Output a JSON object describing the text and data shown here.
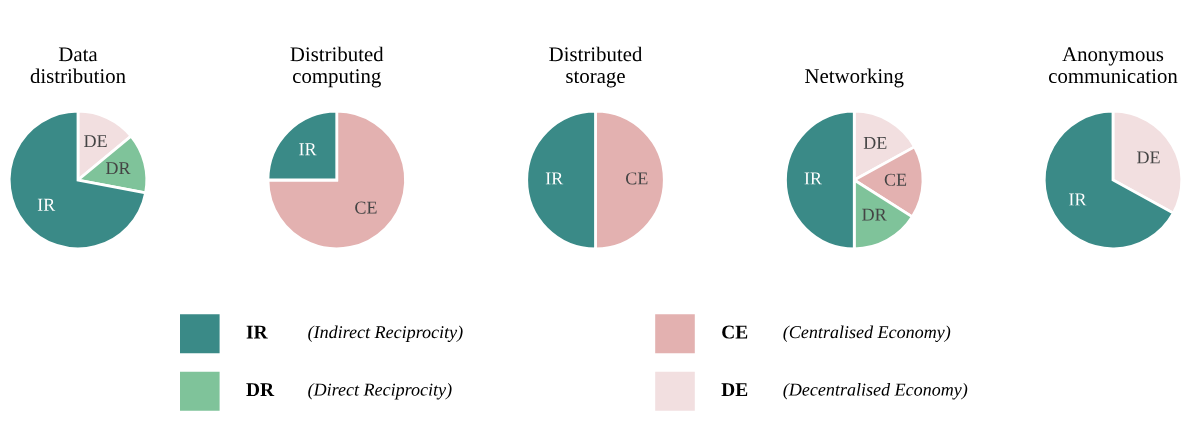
{
  "chart_data": [
    {
      "type": "pie",
      "title": "Data\ndistribution",
      "categories": [
        "DE",
        "DR",
        "IR"
      ],
      "values": [
        14,
        14,
        72
      ],
      "colors": [
        "#f2dfe0",
        "#7fc39a",
        "#3a8a87"
      ]
    },
    {
      "type": "pie",
      "title": "Distributed\ncomputing",
      "categories": [
        "CE",
        "IR"
      ],
      "values": [
        75,
        25
      ],
      "colors": [
        "#e3b1b0",
        "#3a8a87"
      ]
    },
    {
      "type": "pie",
      "title": "Distributed\nstorage",
      "categories": [
        "CE",
        "IR"
      ],
      "values": [
        50,
        50
      ],
      "colors": [
        "#e3b1b0",
        "#3a8a87"
      ]
    },
    {
      "type": "pie",
      "title": "Networking",
      "categories": [
        "DE",
        "CE",
        "DR",
        "IR"
      ],
      "values": [
        17,
        17,
        16,
        50
      ],
      "colors": [
        "#f2dfe0",
        "#e3b1b0",
        "#7fc39a",
        "#3a8a87"
      ]
    },
    {
      "type": "pie",
      "title": "Anonymous\ncommunication",
      "categories": [
        "DE",
        "IR"
      ],
      "values": [
        33,
        67
      ],
      "colors": [
        "#f2dfe0",
        "#3a8a87"
      ]
    },
    {
      "type": "other",
      "categories": [
        "IR",
        "DR",
        "CE",
        "DE"
      ],
      "colors": [
        "#3a8a87",
        "#7fc39a",
        "#e3b1b0",
        "#f2dfe0"
      ],
      "annotations": [
        "(Indirect Reciprocity)",
        "(Direct Reciprocity)",
        "(Centralised Economy)",
        "(Decentralised Economy)"
      ]
    }
  ]
}
